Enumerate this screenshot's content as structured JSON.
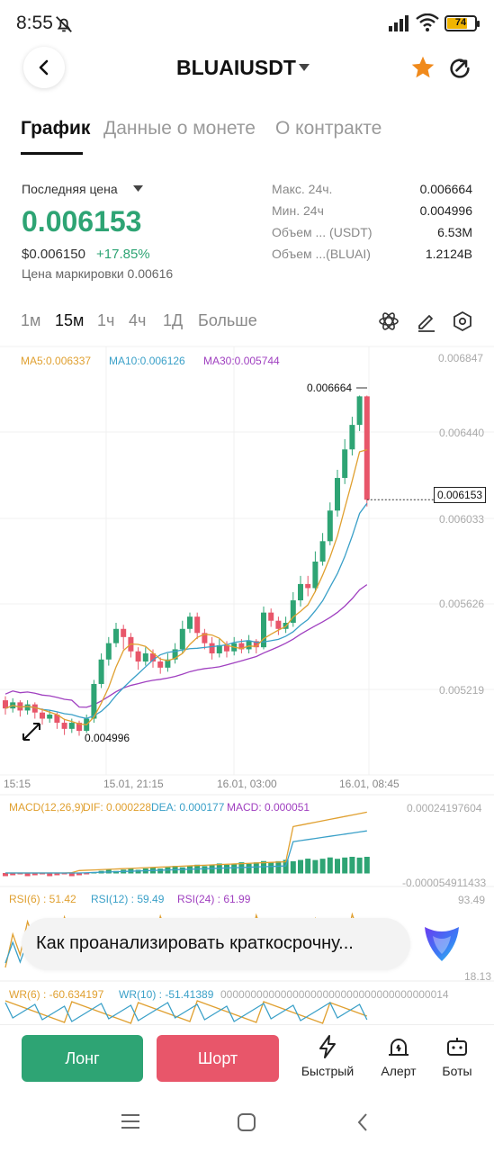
{
  "status_bar": {
    "time": "8:55",
    "battery": "74"
  },
  "header": {
    "title": "BLUAIUSDT"
  },
  "tabs": [
    "График",
    "Данные о монете",
    "О контракте"
  ],
  "price": {
    "label": "Последняя цена",
    "last": "0.006153",
    "usd": "$0.006150",
    "change": "+17.85%",
    "mark": "Цена маркировки 0.00616"
  },
  "stats": [
    {
      "label": "Макс. 24ч.",
      "value": "0.006664"
    },
    {
      "label": "Мин. 24ч",
      "value": "0.004996"
    },
    {
      "label": "Объем ... (USDT)",
      "value": "6.53M"
    },
    {
      "label": "Объем ...(BLUAI)",
      "value": "1.2124B"
    }
  ],
  "timeframes": [
    "1м",
    "15м",
    "1ч",
    "4ч",
    "1Д",
    "Больше"
  ],
  "selected_timeframe": "15м",
  "chart": {
    "ma5": "MA5:0.006337",
    "ma10": "MA10:0.006126",
    "ma30": "MA30:0.005744",
    "y_axis": [
      "0.006847",
      "0.006440",
      "0.006033",
      "0.005626",
      "0.005219"
    ],
    "current_price": "0.006153",
    "high_marker": "0.006664",
    "low_marker": "0.004996",
    "x_axis": [
      "15:15",
      "15.01, 21:15",
      "16.01, 03:00",
      "16.01, 08:45"
    ]
  },
  "chart_data": {
    "type": "candlestick",
    "symbol": "BLUAIUSDT",
    "interval": "15м",
    "y_range": [
      0.0049,
      0.00685
    ],
    "last": 0.006153,
    "high": 0.006664,
    "low": 0.004996
  },
  "indicators": {
    "macd": {
      "label": "MACD(12,26,9)",
      "dif": "DIF: 0.000228",
      "dea": "DEA: 0.000177",
      "macd": "MACD: 0.000051",
      "max": "0.00024197604",
      "min": "-0.000054911433"
    },
    "rsi": {
      "rsi6": "RSI(6) : 51.42",
      "rsi12": "RSI(12) : 59.49",
      "rsi24": "RSI(24) : 61.99",
      "max": "93.49",
      "min": "18.13"
    },
    "wr": {
      "wr6": "WR(6) : -60.634197",
      "wr10": "WR(10) : -51.41389",
      "tail": "00000000000000000000000000000000000014"
    }
  },
  "ai_prompt": "Как проанализировать краткосрочну...",
  "actions": {
    "long": "Лонг",
    "short": "Шорт",
    "quick": "Быстрый",
    "alert": "Алерт",
    "bots": "Боты"
  },
  "colors": {
    "up": "#2ea474",
    "down": "#e8566a",
    "ma5": "#e0a030",
    "ma10": "#3aa0c8",
    "ma30": "#a040c0"
  }
}
